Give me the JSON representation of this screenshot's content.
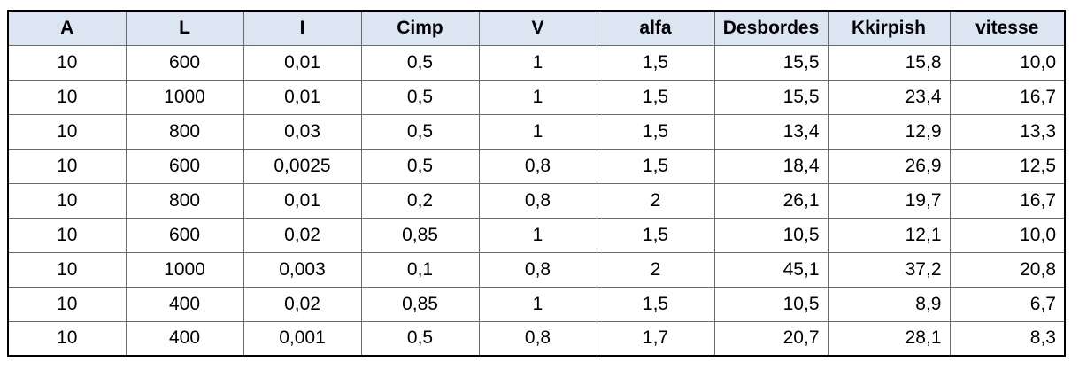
{
  "table": {
    "headers": [
      "A",
      "L",
      "I",
      "Cimp",
      "V",
      "alfa",
      "Desbordes",
      "Kkirpish",
      "vitesse"
    ],
    "rows": [
      [
        "10",
        "600",
        "0,01",
        "0,5",
        "1",
        "1,5",
        "15,5",
        "15,8",
        "10,0"
      ],
      [
        "10",
        "1000",
        "0,01",
        "0,5",
        "1",
        "1,5",
        "15,5",
        "23,4",
        "16,7"
      ],
      [
        "10",
        "800",
        "0,03",
        "0,5",
        "1",
        "1,5",
        "13,4",
        "12,9",
        "13,3"
      ],
      [
        "10",
        "600",
        "0,0025",
        "0,5",
        "0,8",
        "1,5",
        "18,4",
        "26,9",
        "12,5"
      ],
      [
        "10",
        "800",
        "0,01",
        "0,2",
        "0,8",
        "2",
        "26,1",
        "19,7",
        "16,7"
      ],
      [
        "10",
        "600",
        "0,02",
        "0,85",
        "1",
        "1,5",
        "10,5",
        "12,1",
        "10,0"
      ],
      [
        "10",
        "1000",
        "0,003",
        "0,1",
        "0,8",
        "2",
        "45,1",
        "37,2",
        "20,8"
      ],
      [
        "10",
        "400",
        "0,02",
        "0,85",
        "1",
        "1,5",
        "10,5",
        "8,9",
        "6,7"
      ],
      [
        "10",
        "400",
        "0,001",
        "0,5",
        "0,8",
        "1,7",
        "20,7",
        "28,1",
        "8,3"
      ]
    ]
  },
  "colors": {
    "header_background": "#dce6f2",
    "border": "#6b6b6b",
    "outer_border": "#000000"
  }
}
